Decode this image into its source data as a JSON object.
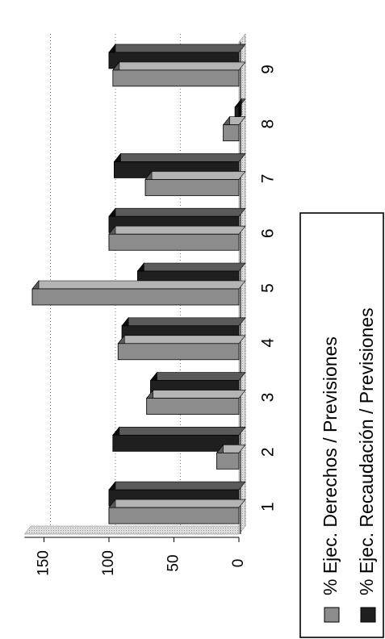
{
  "chart_data": {
    "type": "bar",
    "orientation": "rotated-90",
    "style": "3d-clustered",
    "categories": [
      "1",
      "2",
      "3",
      "4",
      "5",
      "6",
      "7",
      "8",
      "9"
    ],
    "series": [
      {
        "name": "% Ejec. Derechos / Previsiones",
        "values": [
          100,
          17,
          71,
          93,
          159,
          100,
          72,
          12,
          97
        ]
      },
      {
        "name": "% Ejec. Recaudación / Previsiones",
        "values": [
          100,
          97,
          68,
          90,
          78,
          100,
          96,
          3,
          100
        ]
      }
    ],
    "yticks": [
      0,
      50,
      100,
      150
    ],
    "ylim": [
      0,
      165
    ],
    "grid": true,
    "legend_position": "bottom",
    "colors": {
      "series1_face": "#8c8c8c",
      "series1_side": "#5c5c5c",
      "series1_top": "#b4b4b4",
      "series2_face": "#1f1f1f",
      "series2_side": "#0a0a0a",
      "series2_top": "#5a5a5a",
      "wall": "#c9c9c9",
      "grid": "#666666",
      "axis": "#000000"
    }
  }
}
